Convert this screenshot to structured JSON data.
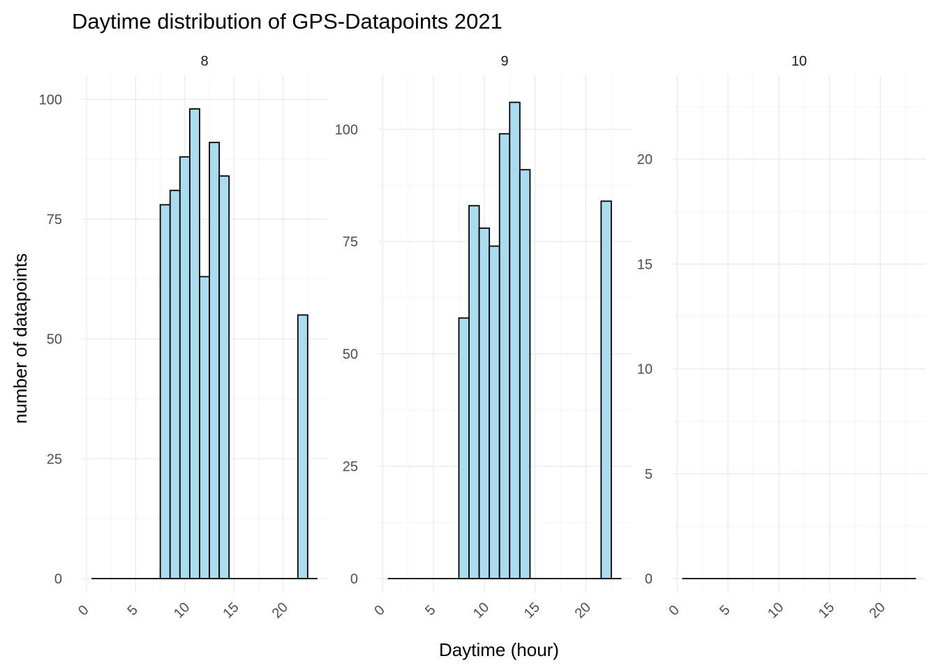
{
  "chart_data": {
    "type": "bar",
    "title": "Daytime distribution of GPS-Datapoints 2021",
    "xlabel": "Daytime (hour)",
    "ylabel": "number of datapoints",
    "x_ticks": [
      "0",
      "5",
      "10",
      "15",
      "20"
    ],
    "xlim": [
      -0.5,
      24.5
    ],
    "bar_fill": "#aadcf0",
    "bar_outline": "#000000",
    "grid": true,
    "panels": [
      {
        "strip_label": "8",
        "ylim": [
          0,
          105
        ],
        "y_ticks": [
          "0",
          "25",
          "50",
          "75",
          "100"
        ],
        "hours": [
          1,
          2,
          3,
          4,
          5,
          6,
          7,
          8,
          9,
          10,
          11,
          12,
          13,
          14,
          15,
          16,
          17,
          18,
          19,
          20,
          21,
          22,
          23
        ],
        "values": [
          0,
          0,
          0,
          0,
          0,
          0,
          0,
          78,
          81,
          88,
          98,
          63,
          91,
          84,
          0,
          0,
          0,
          0,
          0,
          0,
          0,
          55,
          0
        ]
      },
      {
        "strip_label": "9",
        "ylim": [
          0,
          112
        ],
        "y_ticks": [
          "0",
          "25",
          "50",
          "75",
          "100"
        ],
        "hours": [
          1,
          2,
          3,
          4,
          5,
          6,
          7,
          8,
          9,
          10,
          11,
          12,
          13,
          14,
          15,
          16,
          17,
          18,
          19,
          20,
          21,
          22,
          23
        ],
        "values": [
          0,
          0,
          0,
          0,
          0,
          0,
          0,
          58,
          83,
          78,
          74,
          99,
          106,
          91,
          0,
          0,
          0,
          0,
          0,
          0,
          0,
          84,
          0
        ]
      },
      {
        "strip_label": "10",
        "ylim": [
          0,
          24
        ],
        "y_ticks": [
          "0",
          "5",
          "10",
          "15",
          "20"
        ],
        "hours": [
          1,
          2,
          3,
          4,
          5,
          6,
          7,
          8,
          9,
          10,
          11,
          12,
          13,
          14,
          15,
          16,
          17,
          18,
          19,
          20,
          21,
          22,
          23
        ],
        "values": [
          0,
          0,
          0,
          0,
          0,
          0,
          0,
          0,
          0,
          0,
          0,
          0,
          0,
          0,
          0,
          0,
          0,
          0,
          0,
          0,
          0,
          0,
          0
        ]
      }
    ]
  }
}
